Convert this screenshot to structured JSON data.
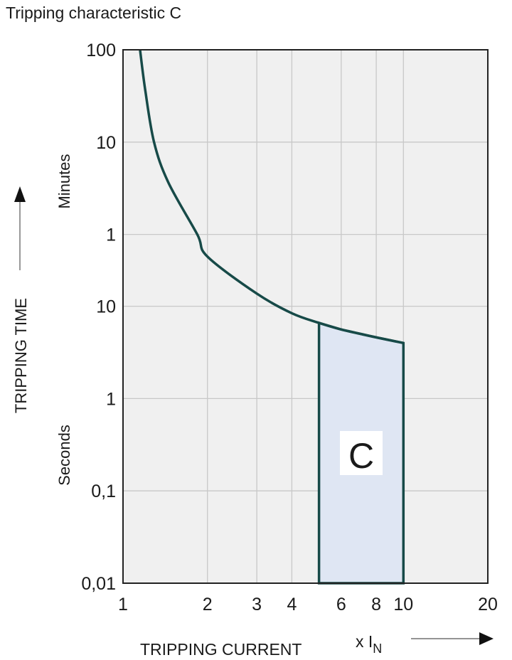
{
  "chart_data": {
    "type": "line",
    "title": "Tripping characteristic C",
    "xlabel": "TRIPPING CURRENT",
    "xunit_prefix": "x I",
    "xunit_sub": "N",
    "ylabel": "TRIPPING TIME",
    "y_unit_minutes": "Minutes",
    "y_unit_seconds": "Seconds",
    "x_scale": "log",
    "y_scale": "log",
    "xlim": [
      1,
      20
    ],
    "ylim_seconds": [
      0.01,
      6000
    ],
    "grid": true,
    "x_ticks": [
      {
        "value": 1,
        "label": "1"
      },
      {
        "value": 2,
        "label": "2"
      },
      {
        "value": 3,
        "label": "3"
      },
      {
        "value": 4,
        "label": "4"
      },
      {
        "value": 6,
        "label": "6"
      },
      {
        "value": 8,
        "label": "8"
      },
      {
        "value": 10,
        "label": "10"
      },
      {
        "value": 20,
        "label": "20"
      }
    ],
    "y_ticks": [
      {
        "seconds": 6000,
        "label": "100"
      },
      {
        "seconds": 600,
        "label": "10"
      },
      {
        "seconds": 60,
        "label": "1"
      },
      {
        "seconds": 10,
        "label": "10"
      },
      {
        "seconds": 1,
        "label": "1"
      },
      {
        "seconds": 0.1,
        "label": "0,1"
      },
      {
        "seconds": 0.01,
        "label": "0,01"
      }
    ],
    "curve": {
      "x": [
        1.15,
        1.2,
        1.29,
        1.45,
        1.84,
        2,
        3,
        4,
        5,
        6,
        8,
        10
      ],
      "seconds": [
        6000,
        2200,
        600,
        220,
        60,
        34.5,
        13.7,
        8.4,
        6.6,
        5.6,
        4.6,
        4.0
      ]
    },
    "region": {
      "label": "C",
      "x_range": [
        5,
        10
      ],
      "bottom_seconds": 0.01,
      "fill": "#dfe6f3"
    },
    "colors": {
      "curve": "#174a48",
      "plot_bg": "#f0f0f0",
      "grid": "#c8c8c8"
    }
  }
}
